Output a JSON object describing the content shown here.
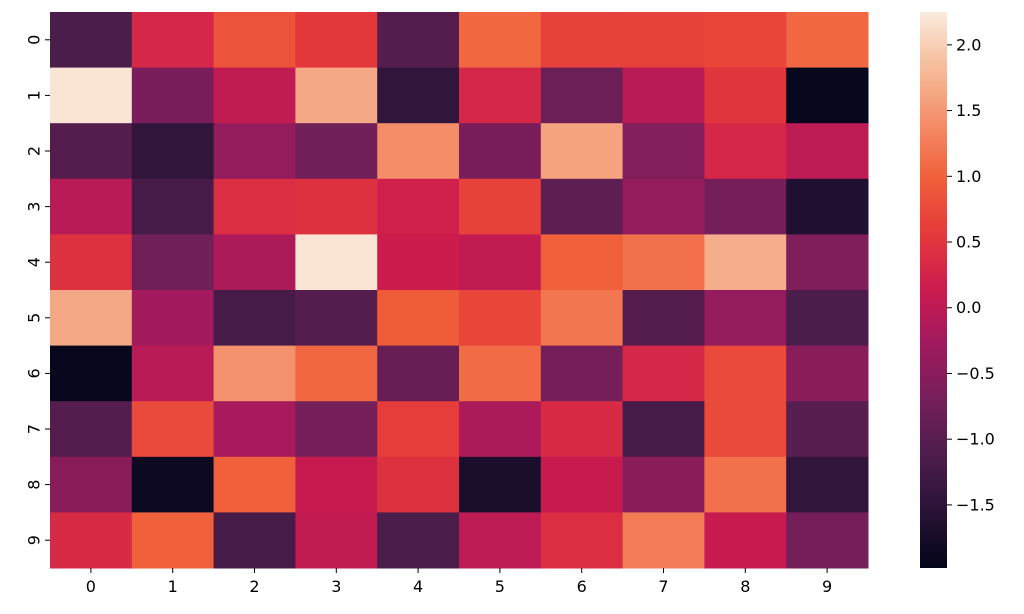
{
  "chart_data": {
    "type": "heatmap",
    "colormap": "rocket",
    "x_tick_labels": [
      "0",
      "1",
      "2",
      "3",
      "4",
      "5",
      "6",
      "7",
      "8",
      "9"
    ],
    "y_tick_labels": [
      "0",
      "1",
      "2",
      "3",
      "4",
      "5",
      "6",
      "7",
      "8",
      "9"
    ],
    "vmin": -1.98,
    "vmax": 2.25,
    "colorbar_ticks": [
      {
        "value": 2.0,
        "label": "2.0"
      },
      {
        "value": 1.5,
        "label": "1.5"
      },
      {
        "value": 1.0,
        "label": "1.0"
      },
      {
        "value": 0.5,
        "label": "0.5"
      },
      {
        "value": 0.0,
        "label": "0.0"
      },
      {
        "value": -0.5,
        "label": "−0.5"
      },
      {
        "value": -1.0,
        "label": "−1.0"
      },
      {
        "value": -1.5,
        "label": "−1.5"
      }
    ],
    "values": [
      [
        -1.15,
        0.3,
        0.85,
        0.55,
        -1.05,
        1.05,
        0.65,
        0.65,
        0.7,
        1.05
      ],
      [
        2.2,
        -0.65,
        0.05,
        1.65,
        -1.45,
        0.3,
        -0.8,
        -0.05,
        0.5,
        -1.95
      ],
      [
        -1.05,
        -1.45,
        -0.4,
        -0.75,
        1.4,
        -0.65,
        1.6,
        -0.55,
        0.3,
        0.0
      ],
      [
        -0.05,
        -1.2,
        0.4,
        0.45,
        0.2,
        0.65,
        -0.95,
        -0.4,
        -0.7,
        -1.65
      ],
      [
        0.45,
        -0.75,
        -0.15,
        2.2,
        0.15,
        0.05,
        1.0,
        1.15,
        1.7,
        -0.6
      ],
      [
        1.65,
        -0.25,
        -1.2,
        -1.05,
        0.95,
        0.7,
        1.2,
        -1.05,
        -0.4,
        -1.15
      ],
      [
        -1.95,
        -0.05,
        1.45,
        1.05,
        -0.85,
        1.1,
        -0.7,
        0.3,
        0.75,
        -0.5
      ],
      [
        -1.05,
        0.75,
        -0.2,
        -0.7,
        0.6,
        -0.15,
        0.35,
        -1.2,
        0.75,
        -1.0
      ],
      [
        -0.5,
        -1.85,
        1.0,
        0.1,
        0.45,
        -1.7,
        0.1,
        -0.5,
        1.15,
        -1.45
      ],
      [
        0.35,
        1.0,
        -1.2,
        0.05,
        -1.15,
        0.0,
        0.4,
        1.25,
        0.1,
        -0.7
      ]
    ]
  }
}
